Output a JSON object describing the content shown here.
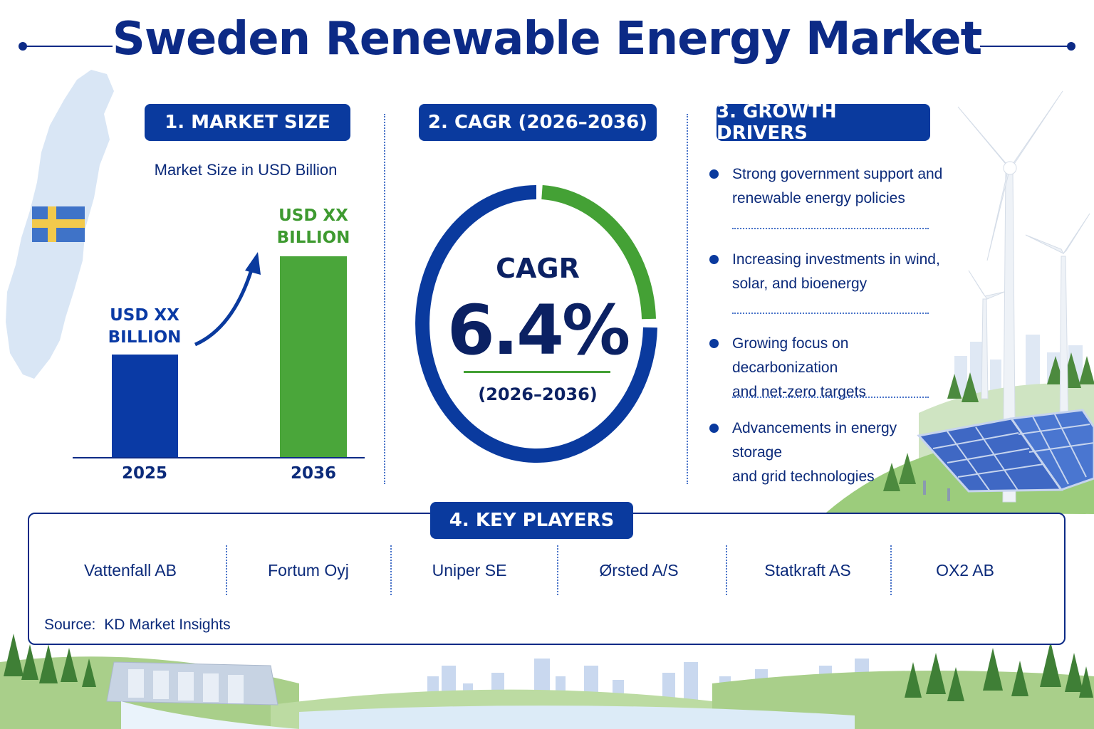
{
  "title": "Sweden Renewable Energy Market",
  "colors": {
    "navy": "#0a3a9e",
    "green": "#44a135",
    "text": "#0b2a7a"
  },
  "market_size": {
    "heading": "1. MARKET SIZE",
    "subtitle": "Market Size in USD Billion",
    "bars": [
      {
        "year": "2025",
        "label_line1": "USD XX",
        "label_line2": "BILLION",
        "color": "#0a3aa5"
      },
      {
        "year": "2036",
        "label_line1": "USD XX",
        "label_line2": "BILLION",
        "color": "#4aa63a"
      }
    ]
  },
  "cagr": {
    "heading": "2. CAGR (2026–2036)",
    "word": "CAGR",
    "value": "6.4%",
    "period": "(2026–2036)"
  },
  "growth_drivers": {
    "heading": "3. GROWTH DRIVERS",
    "items": [
      {
        "line1": "Strong government support and",
        "line2": "renewable energy policies"
      },
      {
        "line1": "Increasing investments in wind,",
        "line2": "solar, and bioenergy"
      },
      {
        "line1": "Growing focus on decarbonization",
        "line2": "and net-zero targets"
      },
      {
        "line1": "Advancements in energy storage",
        "line2": "and grid technologies"
      }
    ]
  },
  "key_players": {
    "heading": "4. KEY PLAYERS",
    "players": [
      "Vattenfall AB",
      "Fortum Oyj",
      "Uniper SE",
      "Ørsted A/S",
      "Statkraft AS",
      "OX2 AB"
    ]
  },
  "source": {
    "label": "Source:",
    "value": "KD Market Insights"
  },
  "icons": [
    "sweden-map-icon",
    "sweden-flag-icon",
    "growth-arrow-icon",
    "wind-turbine-icon",
    "solar-panel-icon",
    "hydro-dam-icon",
    "forest-icon",
    "city-skyline-icon"
  ]
}
